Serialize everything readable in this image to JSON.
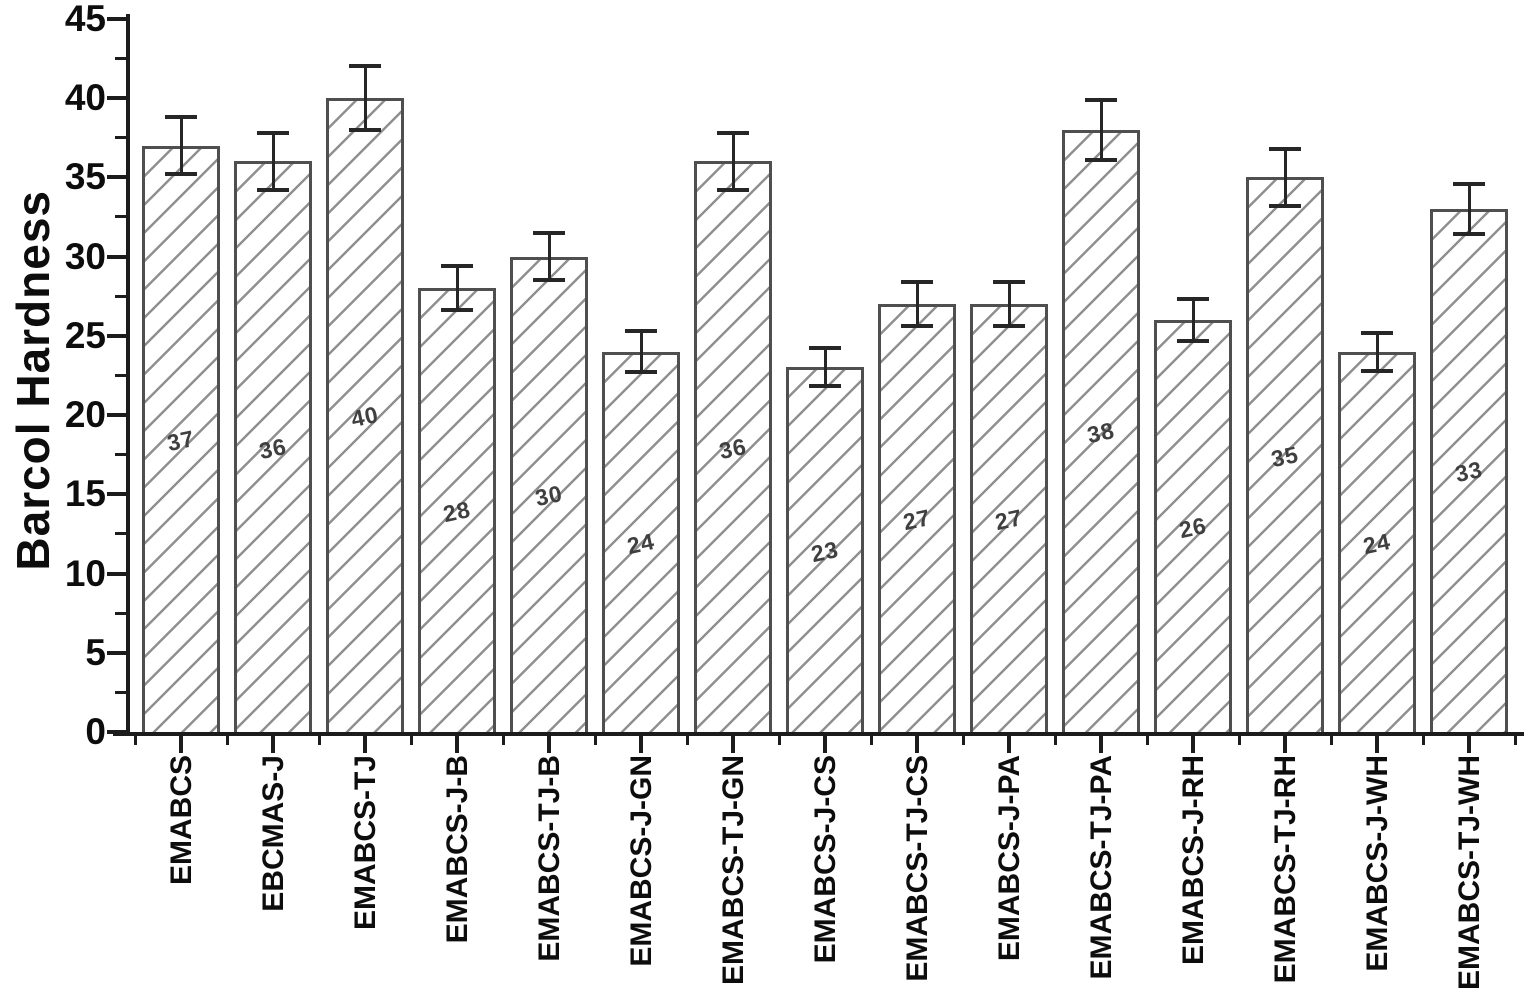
{
  "chart_data": {
    "type": "bar",
    "title": "",
    "xlabel": "",
    "ylabel": "Barcol Hardness",
    "ylim": [
      0,
      45
    ],
    "y_major_ticks": [
      0,
      5,
      10,
      15,
      20,
      25,
      30,
      35,
      40,
      45
    ],
    "y_minor_ticks": [
      2.5,
      7.5,
      12.5,
      17.5,
      22.5,
      27.5,
      32.5,
      37.5,
      42.5
    ],
    "grid": false,
    "legend": false,
    "categories": [
      "EMABCS",
      "EBCMAS-J",
      "EMABCS-TJ",
      "EMABCS-J-B",
      "EMABCS-TJ-B",
      "EMABCS-J-GN",
      "EMABCS-TJ-GN",
      "EMABCS-J-CS",
      "EMABCS-TJ-CS",
      "EMABCS-J-PA",
      "EMABCS-TJ-PA",
      "EMABCS-J-RH",
      "EMABCS-TJ-RH",
      "EMABCS-J-WH",
      "EMABCS-TJ-WH"
    ],
    "values": [
      37,
      36,
      40,
      28,
      30,
      24,
      36,
      23,
      27,
      27,
      38,
      26,
      35,
      24,
      33
    ],
    "errors": [
      1.8,
      1.8,
      2.0,
      1.4,
      1.5,
      1.3,
      1.8,
      1.2,
      1.4,
      1.4,
      1.9,
      1.3,
      1.8,
      1.2,
      1.6
    ],
    "value_labels": [
      "37",
      "36",
      "40",
      "28",
      "30",
      "24",
      "36",
      "23",
      "27",
      "27",
      "38",
      "26",
      "35",
      "24",
      "33"
    ],
    "bar_style": {
      "fill": "#ffffff",
      "hatch": "forward-diagonal",
      "hatch_color": "#909090",
      "border_color": "#4f4f4f",
      "value_label_color": "#3f3f3f",
      "error_color": "#262626",
      "axis_color": "#1c1c1c",
      "text_color": "#0d0d0d"
    }
  }
}
